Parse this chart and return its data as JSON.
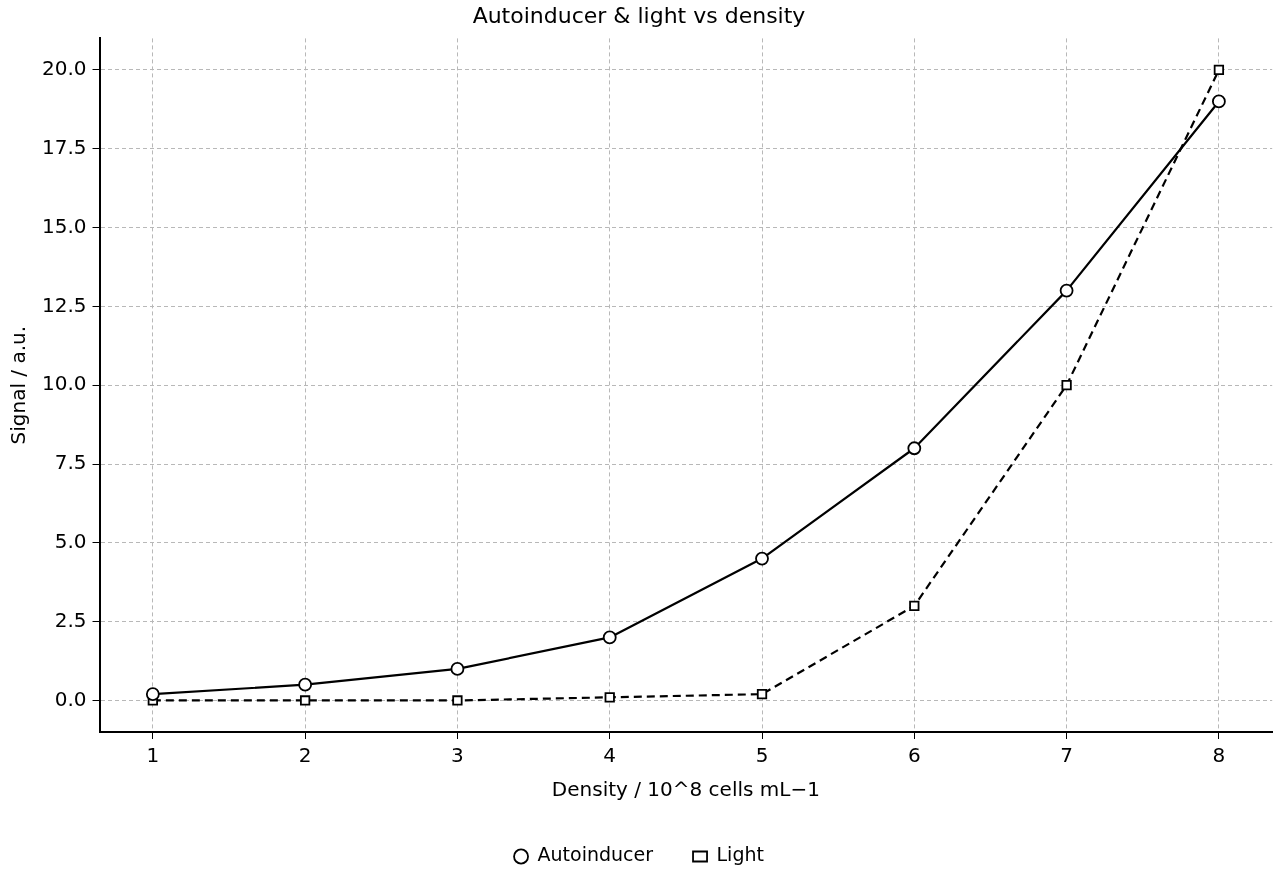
{
  "chart_data": {
    "type": "line",
    "title": "Autoinducer & light vs density",
    "xlabel": "Density / 10^8 cells mL−1",
    "ylabel": "Signal / a.u.",
    "x": [
      1,
      2,
      3,
      4,
      5,
      6,
      7,
      8
    ],
    "series": [
      {
        "name": "Autoinducer",
        "color": "#000000",
        "marker": "circle",
        "line_style": "solid",
        "values": [
          0.2,
          0.5,
          1.0,
          2.0,
          4.5,
          8.0,
          13.0,
          19.0
        ]
      },
      {
        "name": "Light",
        "color": "#000000",
        "marker": "square",
        "line_style": "dashed",
        "values": [
          0,
          0,
          0,
          0.1,
          0.2,
          3.0,
          10.0,
          20.0
        ]
      }
    ],
    "xlim": [
      0.65,
      8.35
    ],
    "xticks": [
      1,
      2,
      3,
      4,
      5,
      6,
      7,
      8
    ],
    "ylim": [
      -1.0,
      21.0
    ],
    "yticks": [
      {
        "value": 0,
        "label": "0.0"
      },
      {
        "value": 2.5,
        "label": "2.5"
      },
      {
        "value": 5,
        "label": "5.0"
      },
      {
        "value": 7.5,
        "label": "7.5"
      },
      {
        "value": 10,
        "label": "10.0"
      },
      {
        "value": 12.5,
        "label": "12.5"
      },
      {
        "value": 15,
        "label": "15.0"
      },
      {
        "value": 17.5,
        "label": "17.5"
      },
      {
        "value": 20,
        "label": "20.0"
      }
    ],
    "grid": true,
    "legend": "bottom"
  }
}
